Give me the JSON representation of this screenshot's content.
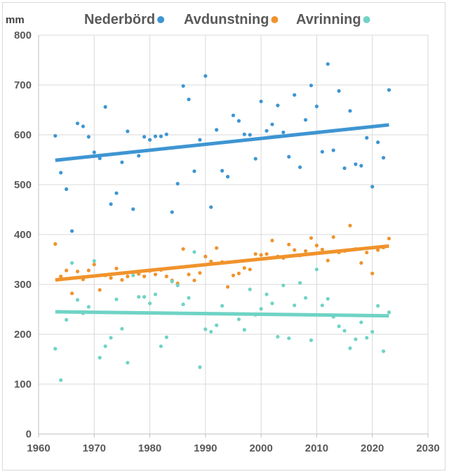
{
  "chart_data": {
    "type": "scatter",
    "ylabel": "mm",
    "xlim": [
      1960,
      2030
    ],
    "ylim": [
      0,
      800
    ],
    "x_ticks": [
      1960,
      1970,
      1980,
      1990,
      2000,
      2010,
      2020,
      2030
    ],
    "y_ticks": [
      0,
      100,
      200,
      300,
      400,
      500,
      600,
      700,
      800
    ],
    "grid": true,
    "legend_position": "top",
    "series": [
      {
        "name": "Nederbörd",
        "color": "#3e95d2",
        "trend": [
          [
            1963,
            549
          ],
          [
            2023,
            620
          ]
        ],
        "points": [
          [
            1963,
            598
          ],
          [
            1964,
            524
          ],
          [
            1965,
            491
          ],
          [
            1966,
            407
          ],
          [
            1967,
            623
          ],
          [
            1968,
            617
          ],
          [
            1969,
            596
          ],
          [
            1970,
            565
          ],
          [
            1971,
            553
          ],
          [
            1972,
            656
          ],
          [
            1973,
            461
          ],
          [
            1974,
            483
          ],
          [
            1975,
            545
          ],
          [
            1976,
            607
          ],
          [
            1977,
            451
          ],
          [
            1978,
            558
          ],
          [
            1979,
            596
          ],
          [
            1980,
            590
          ],
          [
            1981,
            597
          ],
          [
            1982,
            597
          ],
          [
            1983,
            601
          ],
          [
            1984,
            445
          ],
          [
            1985,
            502
          ],
          [
            1986,
            698
          ],
          [
            1987,
            671
          ],
          [
            1988,
            527
          ],
          [
            1989,
            590
          ],
          [
            1990,
            718
          ],
          [
            1991,
            455
          ],
          [
            1992,
            610
          ],
          [
            1993,
            528
          ],
          [
            1994,
            516
          ],
          [
            1995,
            639
          ],
          [
            1996,
            628
          ],
          [
            1997,
            601
          ],
          [
            1998,
            600
          ],
          [
            1999,
            552
          ],
          [
            2000,
            667
          ],
          [
            2001,
            608
          ],
          [
            2002,
            621
          ],
          [
            2003,
            659
          ],
          [
            2004,
            605
          ],
          [
            2005,
            556
          ],
          [
            2006,
            680
          ],
          [
            2007,
            535
          ],
          [
            2008,
            630
          ],
          [
            2009,
            699
          ],
          [
            2010,
            657
          ],
          [
            2011,
            566
          ],
          [
            2012,
            742
          ],
          [
            2013,
            569
          ],
          [
            2014,
            688
          ],
          [
            2015,
            533
          ],
          [
            2016,
            648
          ],
          [
            2017,
            541
          ],
          [
            2018,
            538
          ],
          [
            2019,
            594
          ],
          [
            2020,
            496
          ],
          [
            2021,
            585
          ],
          [
            2022,
            554
          ],
          [
            2023,
            690
          ]
        ]
      },
      {
        "name": "Avdunstning",
        "color": "#f0932c",
        "trend": [
          [
            1963,
            309
          ],
          [
            2023,
            377
          ]
        ],
        "points": [
          [
            1963,
            381
          ],
          [
            1964,
            316
          ],
          [
            1965,
            328
          ],
          [
            1966,
            282
          ],
          [
            1967,
            326
          ],
          [
            1968,
            310
          ],
          [
            1969,
            328
          ],
          [
            1970,
            340
          ],
          [
            1971,
            289
          ],
          [
            1972,
            318
          ],
          [
            1973,
            313
          ],
          [
            1974,
            332
          ],
          [
            1975,
            309
          ],
          [
            1976,
            316
          ],
          [
            1977,
            324
          ],
          [
            1978,
            321
          ],
          [
            1979,
            316
          ],
          [
            1980,
            327
          ],
          [
            1981,
            320
          ],
          [
            1982,
            329
          ],
          [
            1983,
            316
          ],
          [
            1984,
            308
          ],
          [
            1985,
            302
          ],
          [
            1986,
            371
          ],
          [
            1987,
            320
          ],
          [
            1988,
            308
          ],
          [
            1989,
            323
          ],
          [
            1990,
            356
          ],
          [
            1991,
            346
          ],
          [
            1992,
            373
          ],
          [
            1993,
            345
          ],
          [
            1994,
            295
          ],
          [
            1995,
            318
          ],
          [
            1996,
            322
          ],
          [
            1997,
            333
          ],
          [
            1998,
            330
          ],
          [
            1999,
            361
          ],
          [
            2000,
            359
          ],
          [
            2001,
            361
          ],
          [
            2002,
            388
          ],
          [
            2003,
            356
          ],
          [
            2004,
            353
          ],
          [
            2005,
            380
          ],
          [
            2006,
            369
          ],
          [
            2007,
            358
          ],
          [
            2008,
            367
          ],
          [
            2009,
            393
          ],
          [
            2010,
            378
          ],
          [
            2011,
            370
          ],
          [
            2012,
            348
          ],
          [
            2013,
            395
          ],
          [
            2014,
            364
          ],
          [
            2015,
            367
          ],
          [
            2016,
            418
          ],
          [
            2017,
            371
          ],
          [
            2018,
            343
          ],
          [
            2019,
            364
          ],
          [
            2020,
            322
          ],
          [
            2021,
            369
          ],
          [
            2022,
            374
          ],
          [
            2023,
            392
          ]
        ]
      },
      {
        "name": "Avrinning",
        "color": "#6fd3c5",
        "trend": [
          [
            1963,
            245
          ],
          [
            2023,
            237
          ]
        ],
        "points": [
          [
            1963,
            171
          ],
          [
            1964,
            108
          ],
          [
            1965,
            229
          ],
          [
            1966,
            343
          ],
          [
            1967,
            269
          ],
          [
            1968,
            242
          ],
          [
            1969,
            255
          ],
          [
            1970,
            347
          ],
          [
            1971,
            153
          ],
          [
            1972,
            176
          ],
          [
            1973,
            193
          ],
          [
            1974,
            270
          ],
          [
            1975,
            211
          ],
          [
            1976,
            143
          ],
          [
            1977,
            318
          ],
          [
            1978,
            275
          ],
          [
            1979,
            275
          ],
          [
            1980,
            262
          ],
          [
            1981,
            280
          ],
          [
            1982,
            176
          ],
          [
            1983,
            194
          ],
          [
            1984,
            306
          ],
          [
            1985,
            298
          ],
          [
            1986,
            260
          ],
          [
            1987,
            273
          ],
          [
            1988,
            365
          ],
          [
            1989,
            134
          ],
          [
            1990,
            210
          ],
          [
            1991,
            205
          ],
          [
            1992,
            218
          ],
          [
            1993,
            257
          ],
          [
            1994,
            241
          ],
          [
            1995,
            241
          ],
          [
            1996,
            230
          ],
          [
            1997,
            209
          ],
          [
            1998,
            290
          ],
          [
            1999,
            239
          ],
          [
            2000,
            251
          ],
          [
            2001,
            280
          ],
          [
            2002,
            262
          ],
          [
            2003,
            195
          ],
          [
            2004,
            298
          ],
          [
            2005,
            192
          ],
          [
            2006,
            258
          ],
          [
            2007,
            303
          ],
          [
            2008,
            273
          ],
          [
            2009,
            188
          ],
          [
            2010,
            330
          ],
          [
            2011,
            258
          ],
          [
            2012,
            271
          ],
          [
            2013,
            235
          ],
          [
            2014,
            216
          ],
          [
            2015,
            207
          ],
          [
            2016,
            172
          ],
          [
            2017,
            190
          ],
          [
            2018,
            224
          ],
          [
            2019,
            193
          ],
          [
            2020,
            205
          ],
          [
            2021,
            257
          ],
          [
            2022,
            166
          ],
          [
            2023,
            244
          ]
        ]
      }
    ]
  }
}
